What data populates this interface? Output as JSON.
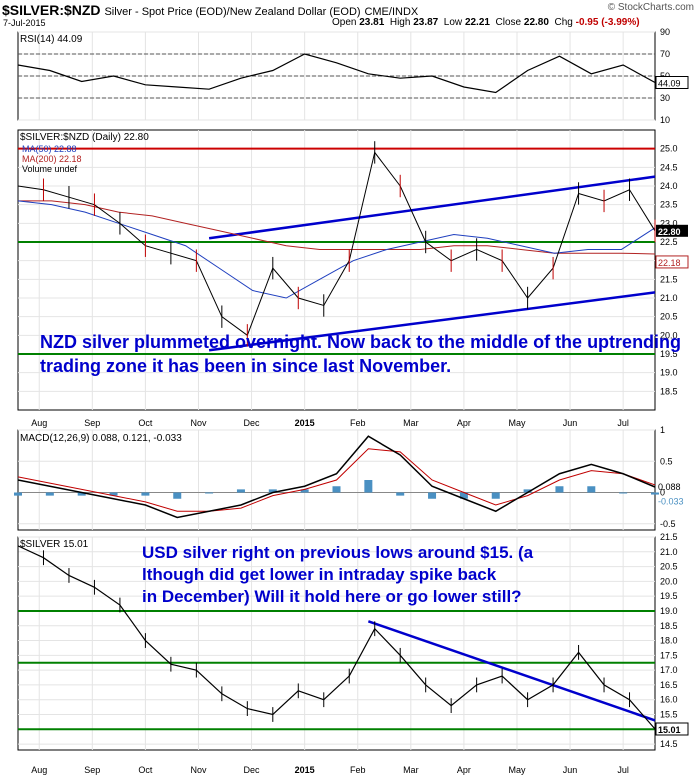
{
  "header": {
    "symbol": "$SILVER:$NZD",
    "description": "Silver - Spot Price (EOD)/New Zealand Dollar (EOD)",
    "exchange": "CME/INDX",
    "date": "7-Jul-2015",
    "open_label": "Open",
    "open": "23.81",
    "high_label": "High",
    "high": "23.87",
    "low_label": "Low",
    "low": "22.21",
    "close_label": "Close",
    "close": "22.80",
    "chg_label": "Chg",
    "chg": "-0.95 (-3.99%)",
    "brand": "© StockCharts.com"
  },
  "x_months": [
    "Aug",
    "Sep",
    "Oct",
    "Nov",
    "Dec",
    "2015",
    "Feb",
    "Mar",
    "Apr",
    "May",
    "Jun",
    "Jul"
  ],
  "chart_data": [
    {
      "type": "line",
      "panel": "rsi",
      "label": "RSI(14) 44.09",
      "ylim": [
        10,
        90
      ],
      "ticks": [
        10,
        30,
        50,
        70,
        90
      ],
      "reference_lines": [
        30,
        50,
        70
      ],
      "last_value": "44.09",
      "x": [
        0,
        0.05,
        0.1,
        0.15,
        0.2,
        0.25,
        0.3,
        0.35,
        0.4,
        0.45,
        0.5,
        0.55,
        0.6,
        0.65,
        0.7,
        0.75,
        0.8,
        0.85,
        0.9,
        0.95,
        1
      ],
      "values": [
        60,
        55,
        45,
        50,
        42,
        40,
        38,
        48,
        55,
        70,
        62,
        52,
        48,
        50,
        40,
        35,
        55,
        68,
        52,
        60,
        44.09
      ]
    },
    {
      "type": "line",
      "panel": "price",
      "label": "$SILVER:$NZD (Daily) 22.80",
      "legend": [
        "MA(50) 22.88",
        "MA(200) 22.18",
        "Volume undef"
      ],
      "ylim": [
        18,
        25.5
      ],
      "ticks": [
        18.5,
        19.0,
        19.5,
        20.0,
        20.5,
        21.0,
        21.5,
        22.0,
        22.5,
        23.0,
        23.5,
        24.0,
        24.5,
        25.0
      ],
      "horizontal_lines": [
        {
          "name": "resistance",
          "y": 25.0,
          "color": "#cc0000"
        },
        {
          "name": "pivot",
          "y": 22.5,
          "color": "#cc0000"
        },
        {
          "name": "green mid",
          "y": 22.5,
          "color": "#008000"
        },
        {
          "name": "green low",
          "y": 19.5,
          "color": "#008000"
        }
      ],
      "channel": [
        {
          "x1": 0.3,
          "y1": 22.6,
          "x2": 1.0,
          "y2": 24.25
        },
        {
          "x1": 0.3,
          "y1": 19.6,
          "x2": 1.0,
          "y2": 21.15
        }
      ],
      "last_labels": [
        "22.80",
        "22.18"
      ],
      "annotation": "NZD silver plummeted overnight. Now back to the middle of the uptrending trading zone it has been in since last November.",
      "x": [
        0,
        0.04,
        0.08,
        0.12,
        0.16,
        0.2,
        0.24,
        0.28,
        0.32,
        0.36,
        0.4,
        0.44,
        0.48,
        0.52,
        0.56,
        0.6,
        0.64,
        0.68,
        0.72,
        0.76,
        0.8,
        0.84,
        0.88,
        0.92,
        0.96,
        1.0
      ],
      "values": [
        24.0,
        23.9,
        23.7,
        23.5,
        23.0,
        22.4,
        22.2,
        22.0,
        20.5,
        20.0,
        21.8,
        21.0,
        20.8,
        22.0,
        24.9,
        24.0,
        22.5,
        22.0,
        22.3,
        22.0,
        21.0,
        21.8,
        23.8,
        23.6,
        23.9,
        22.8
      ],
      "ma50": [
        23.6,
        23.5,
        23.3,
        23.0,
        22.7,
        22.4,
        21.8,
        21.2,
        21.0,
        21.5,
        22.0,
        22.3,
        22.5,
        22.7,
        22.6,
        22.4,
        22.2,
        22.3,
        22.3,
        22.88
      ],
      "ma200": [
        23.6,
        23.6,
        23.5,
        23.3,
        23.2,
        23.0,
        22.8,
        22.6,
        22.4,
        22.3,
        22.3,
        22.3,
        22.3,
        22.4,
        22.4,
        22.3,
        22.2,
        22.2,
        22.2,
        22.18
      ]
    },
    {
      "type": "line",
      "panel": "macd",
      "label": "MACD(12,26,9) 0.088, 0.121, -0.033",
      "ylim": [
        -0.6,
        1.0
      ],
      "ticks": [
        -0.5,
        0.0,
        0.5,
        1.0
      ],
      "last_labels": [
        "0.088",
        "-0.033"
      ],
      "x": [
        0,
        0.05,
        0.1,
        0.15,
        0.2,
        0.25,
        0.3,
        0.35,
        0.4,
        0.45,
        0.5,
        0.55,
        0.6,
        0.65,
        0.7,
        0.75,
        0.8,
        0.85,
        0.9,
        0.95,
        1.0
      ],
      "macd": [
        0.2,
        0.1,
        0.0,
        -0.1,
        -0.2,
        -0.4,
        -0.3,
        -0.2,
        0.0,
        0.1,
        0.3,
        0.9,
        0.6,
        0.1,
        -0.1,
        -0.3,
        0.0,
        0.3,
        0.45,
        0.3,
        0.088
      ],
      "signal": [
        0.25,
        0.15,
        0.05,
        -0.05,
        -0.15,
        -0.3,
        -0.3,
        -0.25,
        -0.05,
        0.05,
        0.2,
        0.7,
        0.65,
        0.2,
        0.0,
        -0.2,
        -0.05,
        0.2,
        0.35,
        0.3,
        0.121
      ],
      "histogram": [
        -0.05,
        -0.05,
        -0.05,
        -0.05,
        -0.05,
        -0.1,
        0.0,
        0.05,
        0.05,
        0.05,
        0.1,
        0.2,
        -0.05,
        -0.1,
        -0.1,
        -0.1,
        0.05,
        0.1,
        0.1,
        0.0,
        -0.033
      ]
    },
    {
      "type": "line",
      "panel": "usd",
      "label": "$SILVER 15.01",
      "ylim": [
        14.3,
        21.5
      ],
      "ticks": [
        14.5,
        15.0,
        15.5,
        16.0,
        16.5,
        17.0,
        17.5,
        18.0,
        18.5,
        19.0,
        19.5,
        20.0,
        20.5,
        21.0,
        21.5
      ],
      "horizontal_lines": [
        {
          "name": "upper",
          "y": 19.0,
          "color": "#008000"
        },
        {
          "name": "mid",
          "y": 17.25,
          "color": "#008000"
        },
        {
          "name": "low",
          "y": 15.0,
          "color": "#008000"
        }
      ],
      "trendline": {
        "x1": 0.55,
        "y1": 18.65,
        "x2": 1.0,
        "y2": 15.3
      },
      "last_label": "15.01",
      "annotation": "USD silver right on previous lows around $15. (although did get lower in intraday spike back in December) Will it hold here or go lower still?",
      "x": [
        0,
        0.04,
        0.08,
        0.12,
        0.16,
        0.2,
        0.24,
        0.28,
        0.32,
        0.36,
        0.4,
        0.44,
        0.48,
        0.52,
        0.56,
        0.6,
        0.64,
        0.68,
        0.72,
        0.76,
        0.8,
        0.84,
        0.88,
        0.92,
        0.96,
        1.0
      ],
      "values": [
        21.2,
        20.8,
        20.2,
        19.8,
        19.2,
        18.0,
        17.2,
        17.0,
        16.2,
        15.7,
        15.5,
        16.3,
        16.0,
        16.8,
        18.4,
        17.5,
        16.5,
        15.8,
        16.5,
        16.8,
        16.0,
        16.5,
        17.6,
        16.5,
        16.0,
        15.01
      ]
    }
  ]
}
